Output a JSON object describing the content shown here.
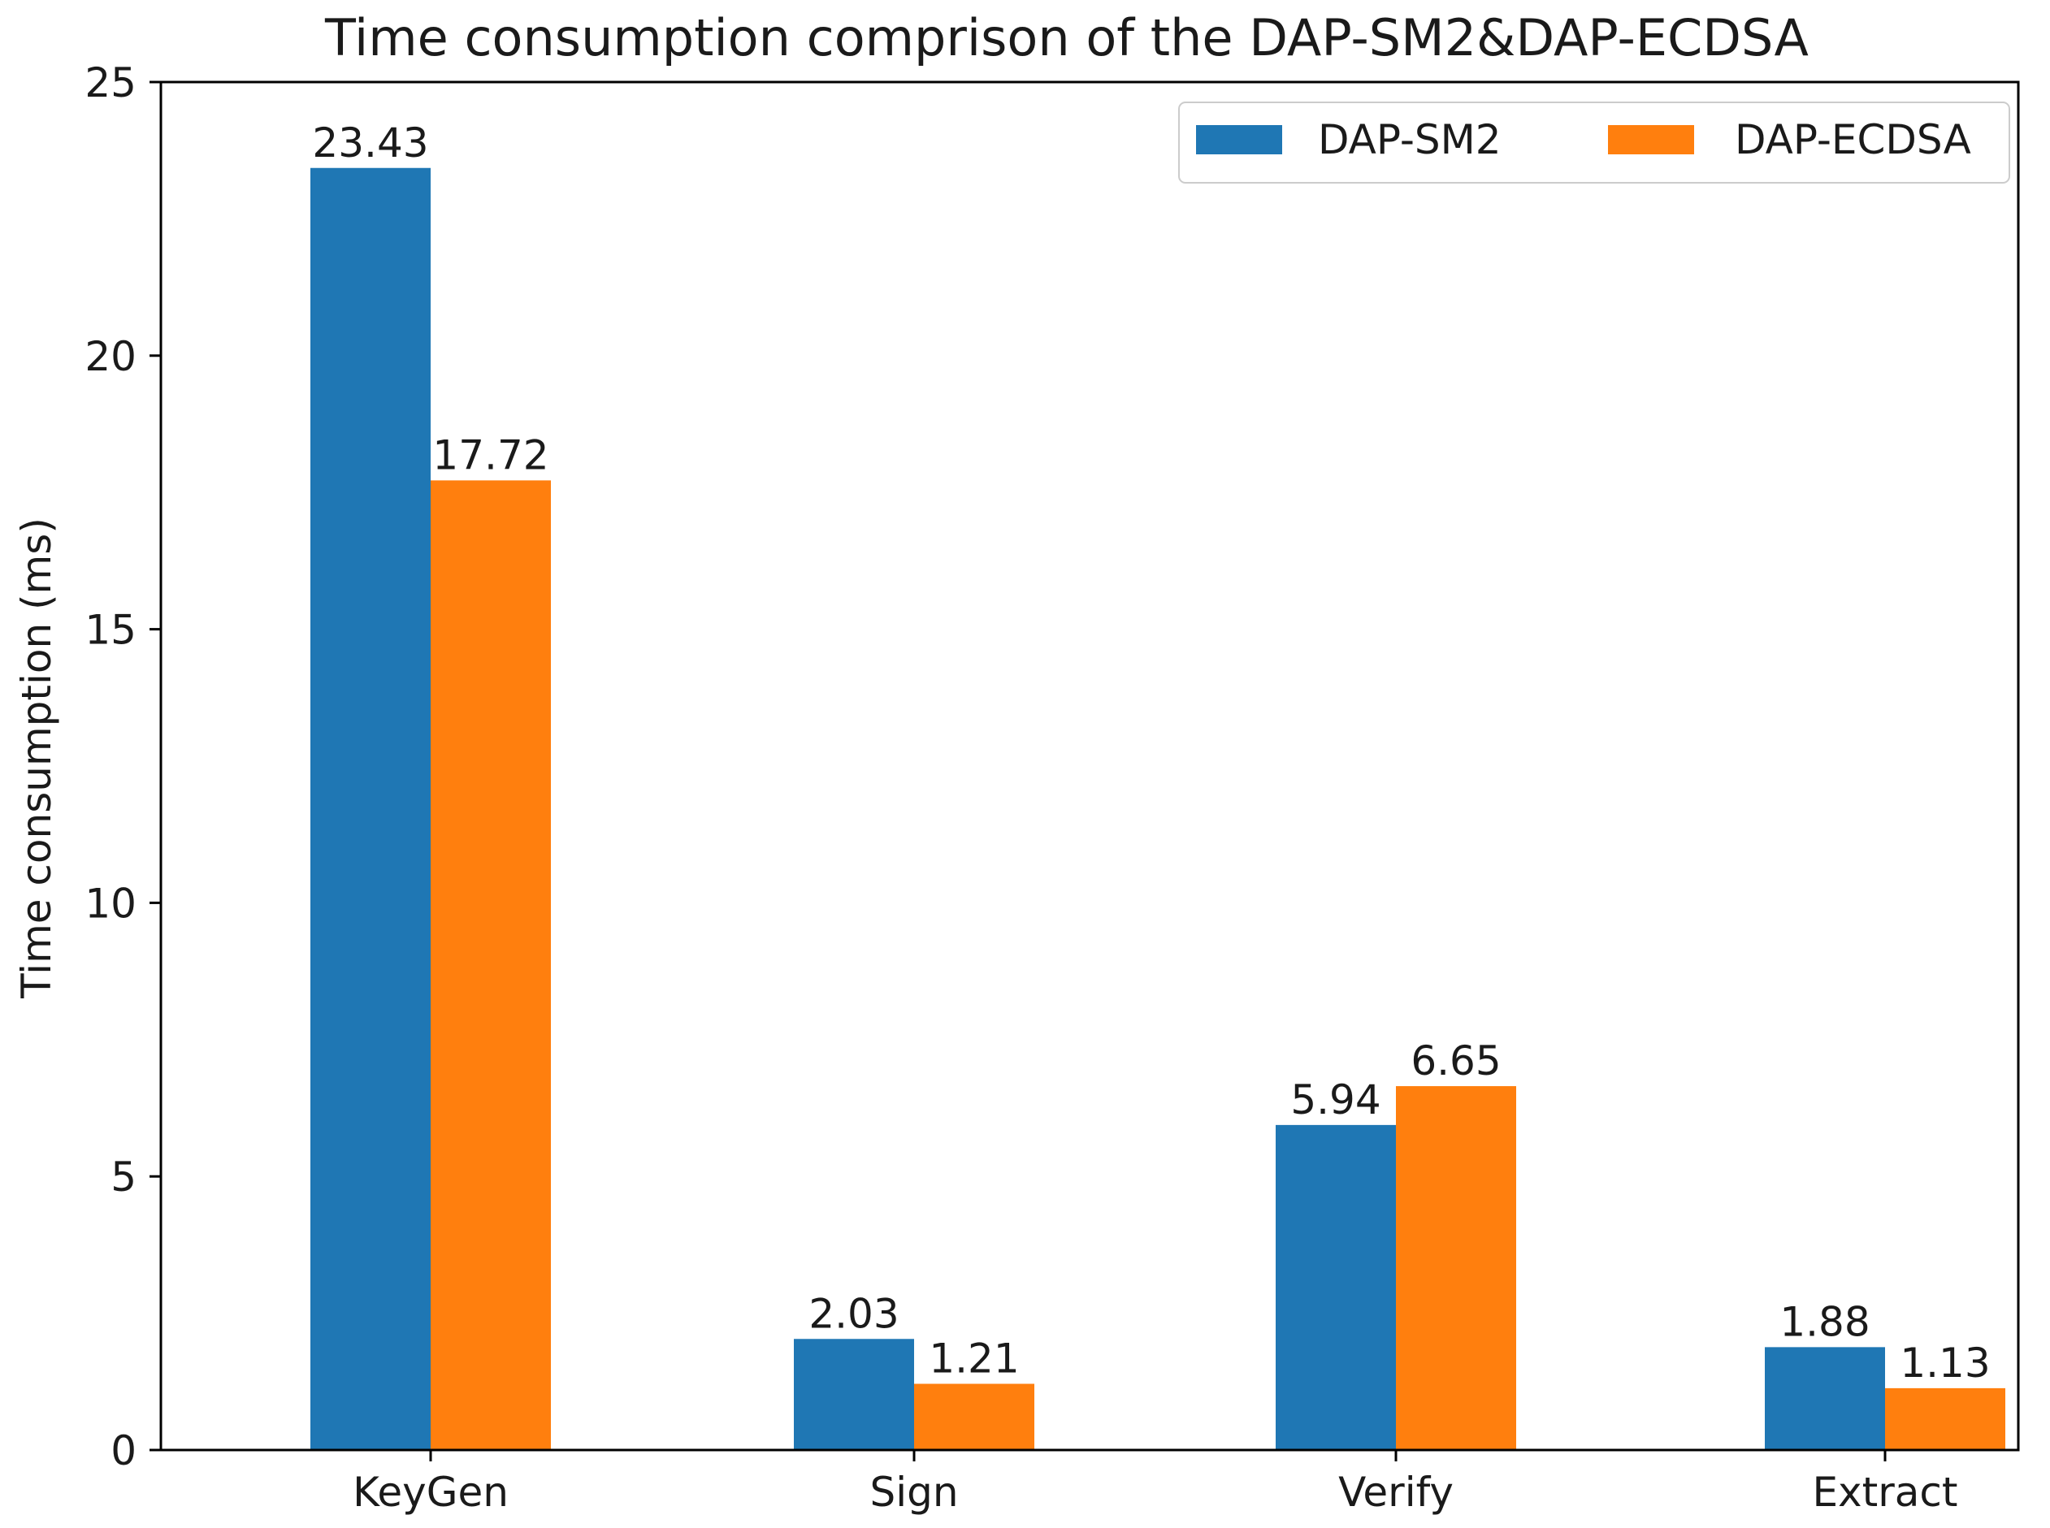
{
  "chart_data": {
    "type": "bar",
    "title": "Time consumption comprison of the DAP-SM2&DAP-ECDSA",
    "xlabel": "",
    "ylabel": "Time consumption (ms)",
    "categories": [
      "KeyGen",
      "Sign",
      "Verify",
      "Extract"
    ],
    "series": [
      {
        "name": "DAP-SM2",
        "color": "#1f77b4",
        "values": [
          23.43,
          2.03,
          5.94,
          1.88
        ],
        "labels": [
          "23.43",
          "2.03",
          "5.94",
          "1.88"
        ]
      },
      {
        "name": "DAP-ECDSA",
        "color": "#ff7f0e",
        "values": [
          17.72,
          1.21,
          6.65,
          1.13
        ],
        "labels": [
          "17.72",
          "1.21",
          "6.65",
          "1.13"
        ]
      }
    ],
    "ylim": [
      0,
      25
    ],
    "yticks": [
      0,
      5,
      10,
      15,
      20,
      25
    ],
    "ytick_labels": [
      "0",
      "5",
      "10",
      "15",
      "20",
      "25"
    ],
    "grid": false,
    "legend_position": "top-right"
  }
}
